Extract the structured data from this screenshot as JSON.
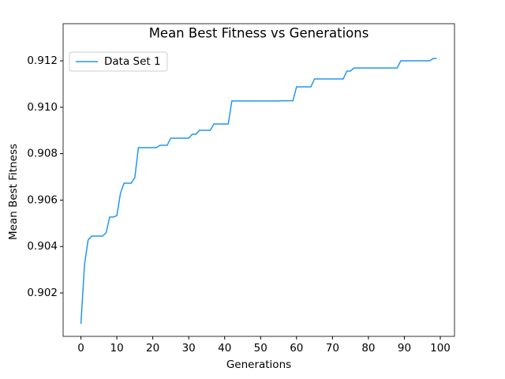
{
  "chart_data": {
    "type": "line",
    "title": "Mean Best Fitness vs Generations",
    "x_label": "Generations",
    "y_label": "Mean Best Fitness",
    "x": [
      0,
      1,
      2,
      3,
      4,
      5,
      6,
      7,
      8,
      9,
      10,
      11,
      12,
      13,
      14,
      15,
      16,
      17,
      18,
      19,
      20,
      21,
      22,
      23,
      24,
      25,
      26,
      27,
      28,
      29,
      30,
      31,
      32,
      33,
      34,
      35,
      36,
      37,
      38,
      39,
      40,
      41,
      42,
      43,
      44,
      45,
      46,
      47,
      48,
      49,
      50,
      51,
      52,
      53,
      54,
      55,
      56,
      57,
      58,
      59,
      60,
      61,
      62,
      63,
      64,
      65,
      66,
      67,
      68,
      69,
      70,
      71,
      72,
      73,
      74,
      75,
      76,
      77,
      78,
      79,
      80,
      81,
      82,
      83,
      84,
      85,
      86,
      87,
      88,
      89,
      90,
      91,
      92,
      93,
      94,
      95,
      96,
      97,
      98,
      99
    ],
    "series": [
      {
        "name": "Data Set 1",
        "color": "#2196f3",
        "values": [
          0.90067,
          0.90322,
          0.90428,
          0.90445,
          0.90445,
          0.90445,
          0.90445,
          0.90459,
          0.90527,
          0.90527,
          0.90533,
          0.90629,
          0.90673,
          0.90673,
          0.90673,
          0.90697,
          0.90826,
          0.90826,
          0.90826,
          0.90826,
          0.90826,
          0.90826,
          0.90836,
          0.90836,
          0.90836,
          0.90867,
          0.90867,
          0.90867,
          0.90867,
          0.90867,
          0.90867,
          0.90884,
          0.90884,
          0.90901,
          0.90901,
          0.90901,
          0.90901,
          0.90928,
          0.90928,
          0.90928,
          0.90928,
          0.90928,
          0.91027,
          0.91027,
          0.91027,
          0.91027,
          0.91027,
          0.91027,
          0.91027,
          0.91027,
          0.91027,
          0.91027,
          0.91027,
          0.91027,
          0.91027,
          0.91027,
          0.91028,
          0.91028,
          0.91028,
          0.91028,
          0.91088,
          0.91088,
          0.91088,
          0.91088,
          0.91088,
          0.91122,
          0.91122,
          0.91122,
          0.91122,
          0.91122,
          0.91122,
          0.91122,
          0.91122,
          0.91122,
          0.91156,
          0.91156,
          0.91169,
          0.91169,
          0.91169,
          0.91169,
          0.91169,
          0.91169,
          0.91169,
          0.91169,
          0.91169,
          0.91169,
          0.91169,
          0.91169,
          0.91169,
          0.912,
          0.912,
          0.912,
          0.912,
          0.912,
          0.912,
          0.912,
          0.912,
          0.912,
          0.9121,
          0.9121
        ]
      }
    ],
    "xlim": [
      -4.95,
      103.95
    ],
    "xticks": [
      0,
      10,
      20,
      30,
      40,
      50,
      60,
      70,
      80,
      90,
      100
    ],
    "ylim": [
      0.90013,
      0.9136
    ],
    "yticks": [
      0.902,
      0.904,
      0.906,
      0.908,
      {
        "value": 0.91,
        "label": "0.910"
      },
      0.912
    ],
    "legend": "upper left"
  }
}
